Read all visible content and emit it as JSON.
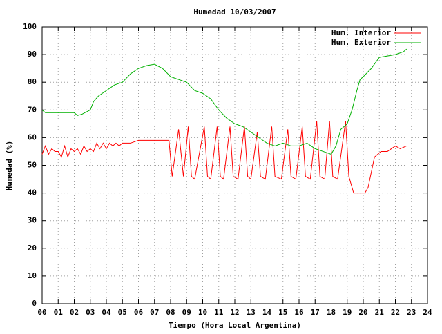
{
  "chart_data": {
    "type": "line",
    "title": "Humedad 10/03/2007",
    "xlabel": "Tiempo (Hora Local Argentina)",
    "ylabel": "Humedad (%)",
    "xlim": [
      0,
      24
    ],
    "ylim": [
      0,
      100
    ],
    "xticks": [
      {
        "value": 0,
        "label": "00"
      },
      {
        "value": 1,
        "label": "01"
      },
      {
        "value": 2,
        "label": "02"
      },
      {
        "value": 3,
        "label": "03"
      },
      {
        "value": 4,
        "label": "04"
      },
      {
        "value": 5,
        "label": "05"
      },
      {
        "value": 6,
        "label": "06"
      },
      {
        "value": 7,
        "label": "07"
      },
      {
        "value": 8,
        "label": "08"
      },
      {
        "value": 9,
        "label": "09"
      },
      10,
      11,
      12,
      13,
      14,
      15,
      16,
      17,
      18,
      19,
      20,
      21,
      22,
      23,
      24
    ],
    "yticks": [
      0,
      10,
      20,
      30,
      40,
      50,
      60,
      70,
      80,
      90,
      100
    ],
    "grid": true,
    "legend": "top-right",
    "series": [
      {
        "name": "Hum. Interior",
        "color": "#ff0000",
        "x": [
          0,
          0.2,
          0.4,
          0.6,
          0.8,
          1,
          1.2,
          1.4,
          1.6,
          1.8,
          2,
          2.2,
          2.4,
          2.6,
          2.8,
          3,
          3.2,
          3.4,
          3.6,
          3.8,
          4,
          4.2,
          4.4,
          4.6,
          4.8,
          5,
          5.5,
          6,
          6.5,
          7,
          7.5,
          7.9,
          8.1,
          8.5,
          8.8,
          9.1,
          9.3,
          9.5,
          10.1,
          10.3,
          10.5,
          10.9,
          11.1,
          11.3,
          11.7,
          11.9,
          12.2,
          12.6,
          12.8,
          13,
          13.4,
          13.6,
          13.9,
          14.3,
          14.5,
          14.9,
          15.3,
          15.5,
          15.8,
          16.2,
          16.4,
          16.7,
          17.1,
          17.3,
          17.6,
          17.9,
          18.1,
          18.4,
          18.9,
          19.1,
          19.4,
          19.6,
          20.1,
          20.3,
          20.7,
          21.1,
          21.5,
          22,
          22.3,
          22.7
        ],
        "values": [
          54,
          57,
          54,
          56,
          55,
          55,
          53,
          57,
          53,
          56,
          55,
          56,
          54,
          57,
          55,
          56,
          55,
          58,
          56,
          58,
          56,
          58,
          57,
          58,
          57,
          58,
          58,
          59,
          59,
          59,
          59,
          59,
          46,
          63,
          46,
          64,
          46,
          45,
          64,
          46,
          45,
          64,
          46,
          45,
          64,
          46,
          45,
          64,
          46,
          45,
          62,
          46,
          45,
          64,
          46,
          45,
          63,
          46,
          45,
          64,
          46,
          45,
          66,
          46,
          45,
          66,
          46,
          45,
          66,
          46,
          40,
          40,
          40,
          42,
          53,
          55,
          55,
          57,
          56,
          57
        ]
      },
      {
        "name": "Hum. Exterior",
        "color": "#00b000",
        "x": [
          0,
          0.2,
          2,
          2.2,
          2.5,
          3,
          3.2,
          3.5,
          4,
          4.5,
          5,
          5.5,
          6,
          6.5,
          7,
          7.5,
          8,
          8.5,
          9,
          9.5,
          10,
          10.5,
          11,
          11.5,
          12,
          12.5,
          13,
          13.5,
          14,
          14.5,
          15,
          15.5,
          16,
          16.5,
          17,
          17.5,
          18,
          18.3,
          18.6,
          19,
          19.3,
          19.6,
          19.8,
          20,
          20.5,
          21,
          21.5,
          22,
          22.5,
          22.7
        ],
        "values": [
          70,
          69,
          69,
          68,
          68.5,
          70,
          73,
          75,
          77,
          79,
          80,
          83,
          85,
          86,
          86.5,
          85,
          82,
          81,
          80,
          77,
          76,
          74,
          70,
          67,
          65,
          64,
          62,
          60,
          58,
          57,
          58,
          57,
          57,
          58,
          56,
          55,
          54,
          57,
          63,
          65,
          70,
          77,
          81,
          82,
          85,
          89,
          89.5,
          90,
          91,
          92
        ]
      }
    ]
  }
}
